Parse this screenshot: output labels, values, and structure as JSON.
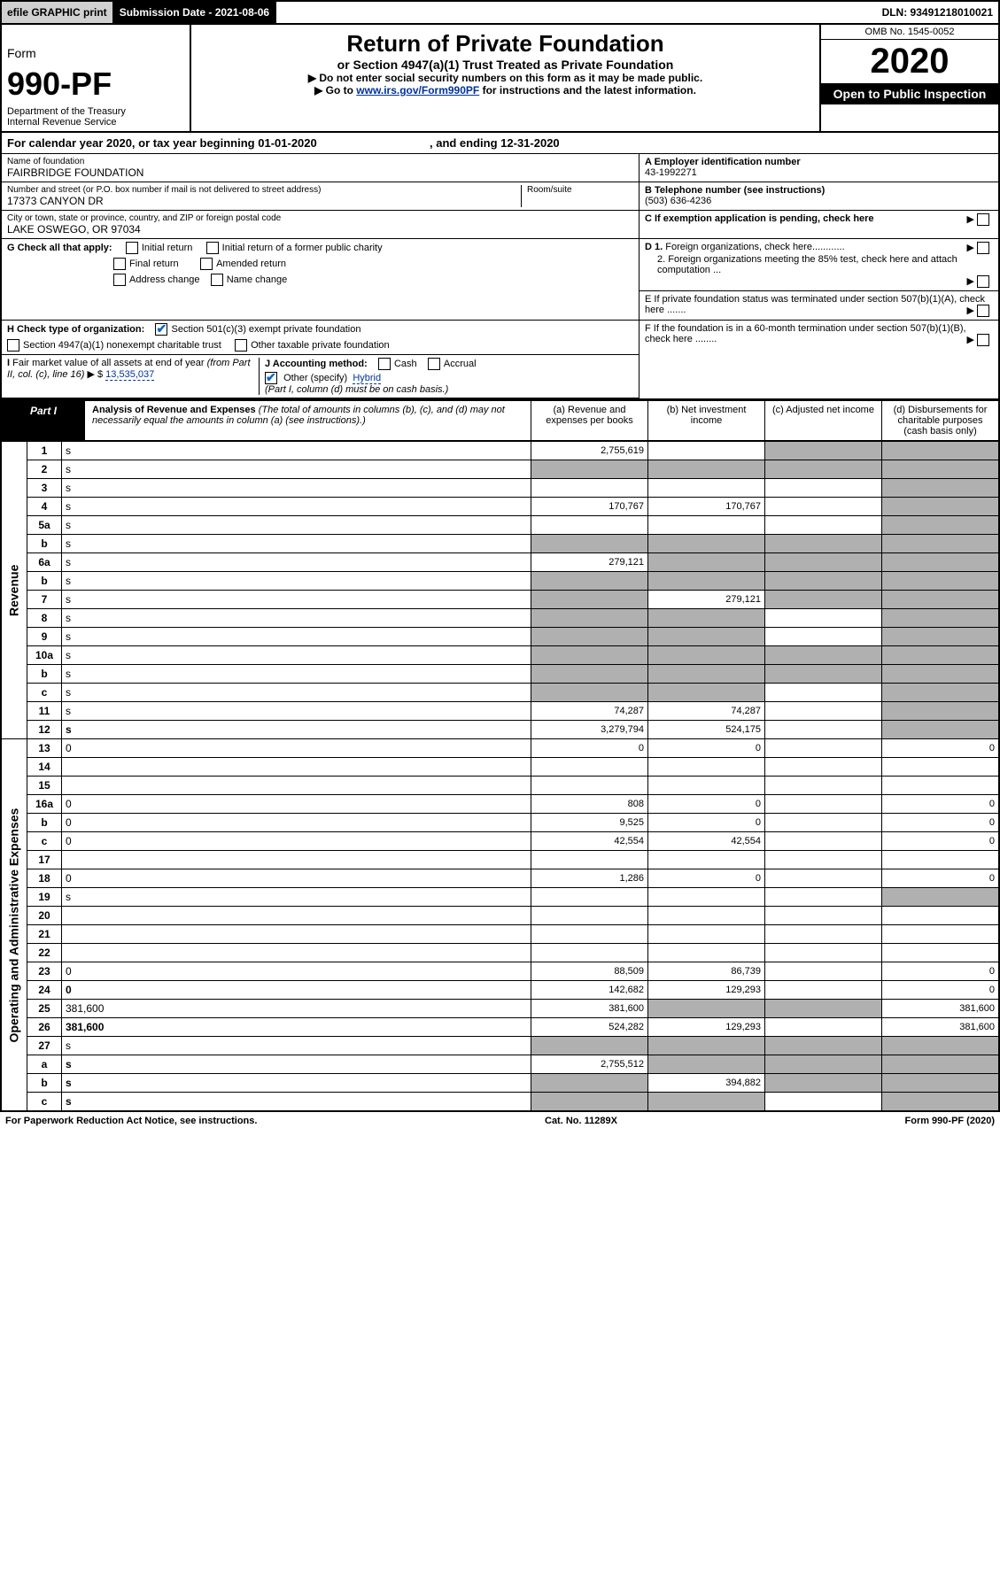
{
  "topbar": {
    "efile": "efile GRAPHIC print",
    "subdate": "Submission Date - 2021-08-06",
    "dln": "DLN: 93491218010021"
  },
  "header": {
    "form_label": "Form",
    "form_no": "990-PF",
    "dept": "Department of the Treasury\nInternal Revenue Service",
    "title": "Return of Private Foundation",
    "subtitle": "or Section 4947(a)(1) Trust Treated as Private Foundation",
    "note1": "▶ Do not enter social security numbers on this form as it may be made public.",
    "note2_pre": "▶ Go to ",
    "note2_link": "www.irs.gov/Form990PF",
    "note2_post": " for instructions and the latest information.",
    "omb": "OMB No. 1545-0052",
    "year": "2020",
    "open": "Open to Public Inspection"
  },
  "calendar": {
    "text_pre": "For calendar year 2020, or tax year beginning ",
    "begin": "01-01-2020",
    "text_mid": " , and ending ",
    "end": "12-31-2020"
  },
  "entity": {
    "name_label": "Name of foundation",
    "name": "FAIRBRIDGE FOUNDATION",
    "addr_label": "Number and street (or P.O. box number if mail is not delivered to street address)",
    "addr": "17373 CANYON DR",
    "room_label": "Room/suite",
    "city_label": "City or town, state or province, country, and ZIP or foreign postal code",
    "city": "LAKE OSWEGO, OR  97034",
    "a_label": "A Employer identification number",
    "ein": "43-1992271",
    "b_label": "B Telephone number (see instructions)",
    "phone": "(503) 636-4236",
    "c_label": "C If exemption application is pending, check here",
    "d1": "D 1. Foreign organizations, check here............",
    "d2": "2. Foreign organizations meeting the 85% test, check here and attach computation ...",
    "e": "E  If private foundation status was terminated under section 507(b)(1)(A), check here .......",
    "f": "F  If the foundation is in a 60-month termination under section 507(b)(1)(B), check here ........",
    "g_label": "G Check all that apply:",
    "g_initial": "Initial return",
    "g_initial_former": "Initial return of a former public charity",
    "g_final": "Final return",
    "g_amended": "Amended return",
    "g_addr": "Address change",
    "g_name": "Name change",
    "h_label": "H Check type of organization:",
    "h_501c3": "Section 501(c)(3) exempt private foundation",
    "h_4947": "Section 4947(a)(1) nonexempt charitable trust",
    "h_other": "Other taxable private foundation",
    "i_label": "I Fair market value of all assets at end of year (from Part II, col. (c), line 16) ▶ $ ",
    "i_value": "13,535,037",
    "j_label": "J Accounting method:",
    "j_cash": "Cash",
    "j_accrual": "Accrual",
    "j_other_label": "Other (specify)",
    "j_other_value": "Hybrid",
    "j_note": "(Part I, column (d) must be on cash basis.)"
  },
  "part1": {
    "label": "Part I",
    "title": "Analysis of Revenue and Expenses ",
    "title_note": "(The total of amounts in columns (b), (c), and (d) may not necessarily equal the amounts in column (a) (see instructions).)",
    "col_a": "(a)    Revenue and expenses per books",
    "col_b": "(b)   Net investment income",
    "col_c": "(c)   Adjusted net income",
    "col_d": "(d)   Disbursements for charitable purposes (cash basis only)"
  },
  "side": {
    "revenue": "Revenue",
    "expenses": "Operating and Administrative Expenses"
  },
  "lines": [
    {
      "n": "1",
      "d": "s",
      "a": "2,755,619",
      "b": "",
      "c": "s"
    },
    {
      "n": "2",
      "d": "s",
      "a": "s",
      "b": "s",
      "c": "s"
    },
    {
      "n": "3",
      "d": "s",
      "a": "",
      "b": "",
      "c": ""
    },
    {
      "n": "4",
      "d": "s",
      "a": "170,767",
      "b": "170,767",
      "c": ""
    },
    {
      "n": "5a",
      "d": "s",
      "a": "",
      "b": "",
      "c": ""
    },
    {
      "n": "b",
      "d": "s",
      "a": "s",
      "b": "s",
      "c": "s"
    },
    {
      "n": "6a",
      "d": "s",
      "a": "279,121",
      "b": "s",
      "c": "s"
    },
    {
      "n": "b",
      "d": "s",
      "a": "s",
      "b": "s",
      "c": "s"
    },
    {
      "n": "7",
      "d": "s",
      "a": "s",
      "b": "279,121",
      "c": "s"
    },
    {
      "n": "8",
      "d": "s",
      "a": "s",
      "b": "s",
      "c": ""
    },
    {
      "n": "9",
      "d": "s",
      "a": "s",
      "b": "s",
      "c": ""
    },
    {
      "n": "10a",
      "d": "s",
      "a": "s",
      "b": "s",
      "c": "s"
    },
    {
      "n": "b",
      "d": "s",
      "a": "s",
      "b": "s",
      "c": "s"
    },
    {
      "n": "c",
      "d": "s",
      "a": "s",
      "b": "s",
      "c": ""
    },
    {
      "n": "11",
      "d": "s",
      "a": "74,287",
      "b": "74,287",
      "c": ""
    },
    {
      "n": "12",
      "d": "s",
      "a": "3,279,794",
      "b": "524,175",
      "c": "",
      "bold": true
    }
  ],
  "exp_lines": [
    {
      "n": "13",
      "d": "0",
      "a": "0",
      "b": "0",
      "c": ""
    },
    {
      "n": "14",
      "d": "",
      "a": "",
      "b": "",
      "c": ""
    },
    {
      "n": "15",
      "d": "",
      "a": "",
      "b": "",
      "c": ""
    },
    {
      "n": "16a",
      "d": "0",
      "a": "808",
      "b": "0",
      "c": ""
    },
    {
      "n": "b",
      "d": "0",
      "a": "9,525",
      "b": "0",
      "c": ""
    },
    {
      "n": "c",
      "d": "0",
      "a": "42,554",
      "b": "42,554",
      "c": ""
    },
    {
      "n": "17",
      "d": "",
      "a": "",
      "b": "",
      "c": ""
    },
    {
      "n": "18",
      "d": "0",
      "a": "1,286",
      "b": "0",
      "c": ""
    },
    {
      "n": "19",
      "d": "s",
      "a": "",
      "b": "",
      "c": ""
    },
    {
      "n": "20",
      "d": "",
      "a": "",
      "b": "",
      "c": ""
    },
    {
      "n": "21",
      "d": "",
      "a": "",
      "b": "",
      "c": ""
    },
    {
      "n": "22",
      "d": "",
      "a": "",
      "b": "",
      "c": ""
    },
    {
      "n": "23",
      "d": "0",
      "a": "88,509",
      "b": "86,739",
      "c": ""
    },
    {
      "n": "24",
      "d": "0",
      "a": "142,682",
      "b": "129,293",
      "c": "",
      "bold": true
    },
    {
      "n": "25",
      "d": "381,600",
      "a": "381,600",
      "b": "s",
      "c": "s"
    },
    {
      "n": "26",
      "d": "381,600",
      "a": "524,282",
      "b": "129,293",
      "c": "",
      "bold": true
    }
  ],
  "bottom_lines": [
    {
      "n": "27",
      "d": "s",
      "a": "s",
      "b": "s",
      "c": "s"
    },
    {
      "n": "a",
      "d": "s",
      "a": "2,755,512",
      "b": "s",
      "c": "s",
      "bold": true
    },
    {
      "n": "b",
      "d": "s",
      "a": "s",
      "b": "394,882",
      "c": "s",
      "bold": true
    },
    {
      "n": "c",
      "d": "s",
      "a": "s",
      "b": "s",
      "c": "",
      "bold": true
    }
  ],
  "footer": {
    "left": "For Paperwork Reduction Act Notice, see instructions.",
    "mid": "Cat. No. 11289X",
    "right": "Form 990-PF (2020)"
  }
}
